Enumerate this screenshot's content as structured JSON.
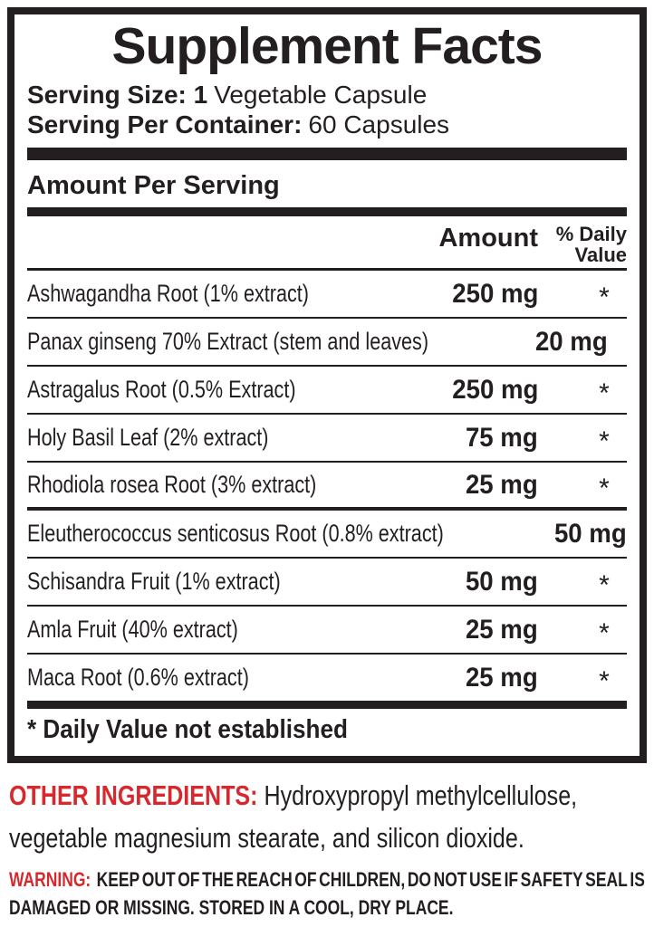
{
  "title": "Supplement Facts",
  "serving": {
    "size_bold": "Serving Size: 1",
    "size_regular": "Vegetable Capsule",
    "container_bold": "Serving Per Container:",
    "container_regular": "60 Capsules"
  },
  "section_header": "Amount Per Serving",
  "table": {
    "columns": {
      "amount": "Amount",
      "daily_value_line1": "% Daily",
      "daily_value_line2": "Value"
    },
    "rows": [
      {
        "name": "Ashwagandha Root (1% extract)",
        "amount": "250 mg",
        "daily_value": "*"
      },
      {
        "name": "Panax ginseng 70% Extract (stem and leaves)",
        "amount": "20 mg",
        "daily_value": "*"
      },
      {
        "name": "Astragalus Root (0.5% Extract)",
        "amount": "250 mg",
        "daily_value": "*"
      },
      {
        "name": "Holy Basil Leaf (2% extract)",
        "amount": "75 mg",
        "daily_value": "*"
      },
      {
        "name": "Rhodiola rosea Root (3% extract)",
        "amount": "25 mg",
        "daily_value": "*"
      },
      {
        "name": "Eleutherococcus senticosus Root (0.8% extract)",
        "amount": "50 mg",
        "daily_value": "*"
      },
      {
        "name": "Schisandra Fruit (1% extract)",
        "amount": "50 mg",
        "daily_value": "*"
      },
      {
        "name": "Amla Fruit (40% extract)",
        "amount": "25 mg",
        "daily_value": "*"
      },
      {
        "name": "Maca Root (0.6% extract)",
        "amount": "25 mg",
        "daily_value": "*"
      }
    ]
  },
  "footnote": "* Daily Value not established",
  "other_ingredients": {
    "label": "OTHER INGREDIENTS:",
    "line1_rest": "Hydroxypropyl methylcellulose,",
    "line2": "vegetable magnesium stearate, and silicon dioxide."
  },
  "warning": {
    "label": "WARNING:",
    "line1_words": "KEEP OUT OF THE REACH OF CHILDREN, DO NOT USE IF SAFETY SEAL IS",
    "line2": "DAMAGED OR MISSING. STORED IN A COOL, DRY PLACE."
  },
  "colors": {
    "accent_red": "#d7282d",
    "ink": "#231f20"
  }
}
